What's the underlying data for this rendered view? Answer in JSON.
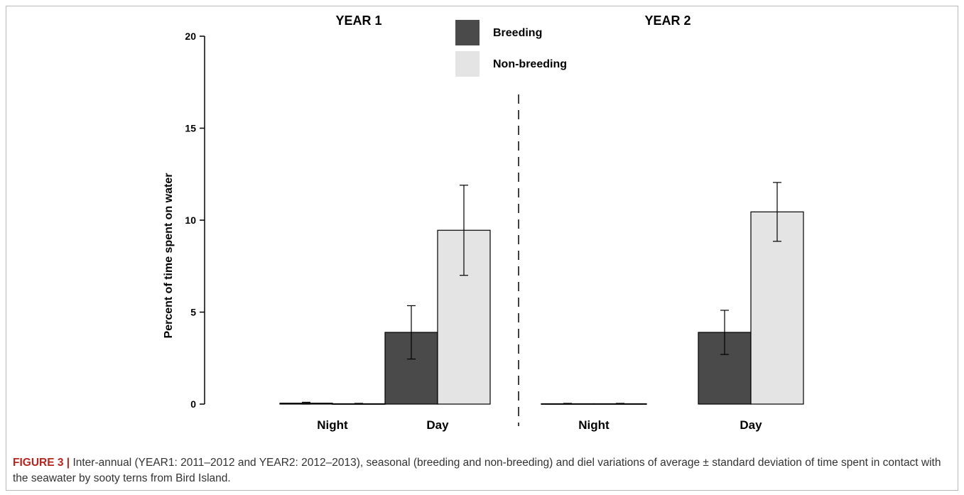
{
  "chart_data": {
    "type": "bar",
    "ylabel": "Percent of time spent on water",
    "ylim": [
      0,
      20
    ],
    "yticks": [
      0,
      5,
      10,
      15,
      20
    ],
    "grid": false,
    "legend_placement": "top-center",
    "colors": {
      "Breeding": "#4a4a4a",
      "Non-breeding": "#e4e4e4"
    },
    "panels": [
      {
        "title": "YEAR 1",
        "categories": [
          "Night",
          "Day"
        ],
        "series": [
          {
            "name": "Breeding",
            "values": [
              0.05,
              3.9
            ],
            "errors": [
              0.05,
              1.45
            ]
          },
          {
            "name": "Non-breeding",
            "values": [
              0.02,
              9.45
            ],
            "errors": [
              0.02,
              2.45
            ]
          }
        ]
      },
      {
        "title": "YEAR 2",
        "categories": [
          "Night",
          "Day"
        ],
        "series": [
          {
            "name": "Breeding",
            "values": [
              0.02,
              3.9
            ],
            "errors": [
              0.02,
              1.2
            ]
          },
          {
            "name": "Non-breeding",
            "values": [
              0.02,
              10.45
            ],
            "errors": [
              0.02,
              1.6
            ]
          }
        ]
      }
    ]
  },
  "caption": {
    "label": "FIGURE 3 |",
    "text": " Inter-annual (YEAR1: 2011–2012 and YEAR2: 2012–2013), seasonal (breeding and non-breeding) and diel variations of average ± standard deviation of time spent in contact with the seawater by sooty terns from Bird Island."
  }
}
